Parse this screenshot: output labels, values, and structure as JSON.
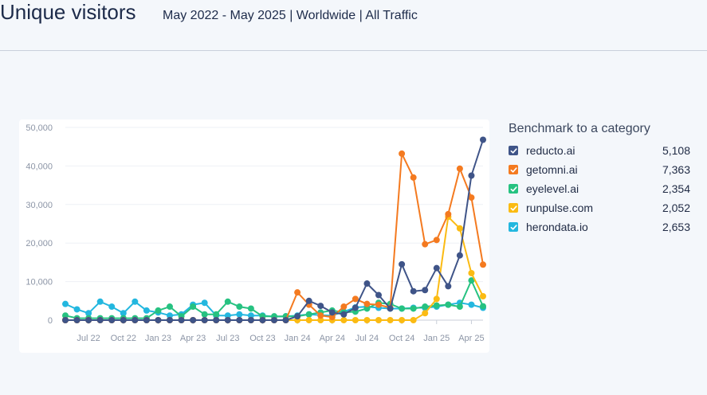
{
  "header": {
    "title": "Unique visitors",
    "subtitle": "May 2022 - May 2025 | Worldwide | All Traffic"
  },
  "legend": {
    "title": "Benchmark to a category"
  },
  "chart_data": {
    "type": "line",
    "x": [
      "May 22",
      "Jun 22",
      "Jul 22",
      "Aug 22",
      "Sep 22",
      "Oct 22",
      "Nov 22",
      "Dec 22",
      "Jan 23",
      "Feb 23",
      "Mar 23",
      "Apr 23",
      "May 23",
      "Jun 23",
      "Jul 23",
      "Aug 23",
      "Sep 23",
      "Oct 23",
      "Nov 23",
      "Dec 23",
      "Jan 24",
      "Feb 24",
      "Mar 24",
      "Apr 24",
      "May 24",
      "Jun 24",
      "Jul 24",
      "Aug 24",
      "Sep 24",
      "Oct 24",
      "Nov 24",
      "Dec 24",
      "Jan 25",
      "Feb 25",
      "Mar 25",
      "Apr 25",
      "May 25"
    ],
    "xticks": [
      {
        "label": "Jul 22",
        "index": 2
      },
      {
        "label": "Oct 22",
        "index": 5
      },
      {
        "label": "Jan 23",
        "index": 8
      },
      {
        "label": "Apr 23",
        "index": 11
      },
      {
        "label": "Jul 23",
        "index": 14
      },
      {
        "label": "Oct 23",
        "index": 17
      },
      {
        "label": "Jan 24",
        "index": 20
      },
      {
        "label": "Apr 24",
        "index": 23
      },
      {
        "label": "Jul 24",
        "index": 26
      },
      {
        "label": "Oct 24",
        "index": 29
      },
      {
        "label": "Jan 25",
        "index": 32
      },
      {
        "label": "Apr 25",
        "index": 35
      }
    ],
    "yticks": [
      0,
      10000,
      20000,
      30000,
      40000,
      50000
    ],
    "ytick_labels": [
      "0",
      "10,000",
      "20,000",
      "30,000",
      "40,000",
      "50,000"
    ],
    "ylim": [
      0,
      50000
    ],
    "grid": true,
    "legend_position": "right",
    "series": [
      {
        "name": "reducto.ai",
        "total": "5,108",
        "color": "#3f5488",
        "values": [
          0,
          0,
          0,
          0,
          0,
          0,
          0,
          0,
          0,
          0,
          0,
          0,
          0,
          0,
          0,
          0,
          0,
          0,
          0,
          0,
          1000,
          5000,
          3700,
          2000,
          1500,
          3200,
          9500,
          6500,
          3000,
          14500,
          7500,
          7800,
          13500,
          8800,
          16800,
          37500,
          46800
        ]
      },
      {
        "name": "getomni.ai",
        "total": "7,363",
        "color": "#f47a20",
        "values": [
          0,
          0,
          0,
          0,
          0,
          0,
          0,
          0,
          0,
          0,
          0,
          0,
          0,
          0,
          0,
          0,
          0,
          0,
          0,
          0,
          7200,
          4000,
          1200,
          800,
          3500,
          5500,
          4200,
          4000,
          3200,
          43200,
          37000,
          19700,
          20800,
          27500,
          39300,
          31800,
          14400
        ]
      },
      {
        "name": "eyelevel.ai",
        "total": "2,354",
        "color": "#26c281",
        "values": [
          1200,
          500,
          500,
          500,
          500,
          500,
          500,
          500,
          2500,
          3500,
          1000,
          3500,
          1500,
          1500,
          4800,
          3500,
          3000,
          1000,
          1000,
          1000,
          1000,
          1500,
          2000,
          2500,
          2000,
          2200,
          3000,
          4500,
          4200,
          3000,
          3000,
          3500,
          3800,
          4000,
          3500,
          10300,
          3600
        ]
      },
      {
        "name": "runpulse.com",
        "total": "2,052",
        "color": "#fbbb13",
        "values": [
          0,
          0,
          0,
          0,
          0,
          0,
          0,
          0,
          0,
          0,
          0,
          0,
          0,
          0,
          0,
          0,
          0,
          0,
          0,
          0,
          0,
          0,
          0,
          0,
          0,
          0,
          0,
          0,
          0,
          0,
          0,
          1800,
          5500,
          26800,
          23800,
          12200,
          6200
        ]
      },
      {
        "name": "herondata.io",
        "total": "2,653",
        "color": "#23b7df",
        "values": [
          4200,
          2800,
          1800,
          4800,
          3500,
          1800,
          4800,
          2500,
          2000,
          1200,
          1500,
          4000,
          4500,
          1200,
          1200,
          1500,
          1200,
          1200,
          900,
          1000,
          1200,
          1500,
          1300,
          1200,
          2200,
          3300,
          3500,
          3200,
          3000,
          3000,
          3200,
          3200,
          3500,
          4000,
          4500,
          4000,
          3200
        ]
      }
    ]
  }
}
